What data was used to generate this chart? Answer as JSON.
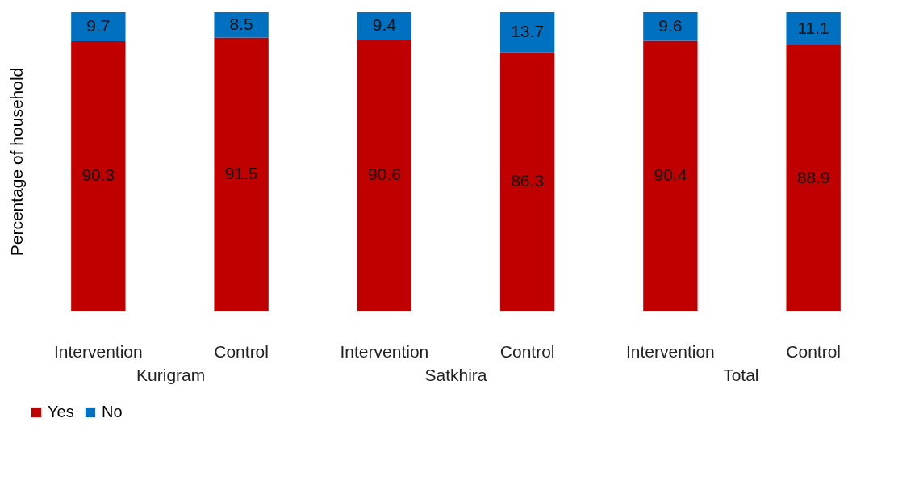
{
  "chart_data": {
    "type": "bar",
    "stacked": true,
    "data_labels": true,
    "legend": "bottom",
    "ylabel": "Percentage of household",
    "categories": [
      "Intervention",
      "Control",
      "Intervention",
      "Control",
      "Intervention",
      "Control"
    ],
    "annotations": [
      "Kurigram",
      "Satkhira",
      "Total"
    ],
    "series": [
      {
        "name": "Yes",
        "color": "#c00000",
        "values": [
          90.3,
          91.5,
          90.6,
          86.3,
          90.4,
          88.9
        ]
      },
      {
        "name": "No",
        "color": "#0070c0",
        "values": [
          9.7,
          8.5,
          9.4,
          13.7,
          9.6,
          11.1
        ]
      }
    ]
  }
}
